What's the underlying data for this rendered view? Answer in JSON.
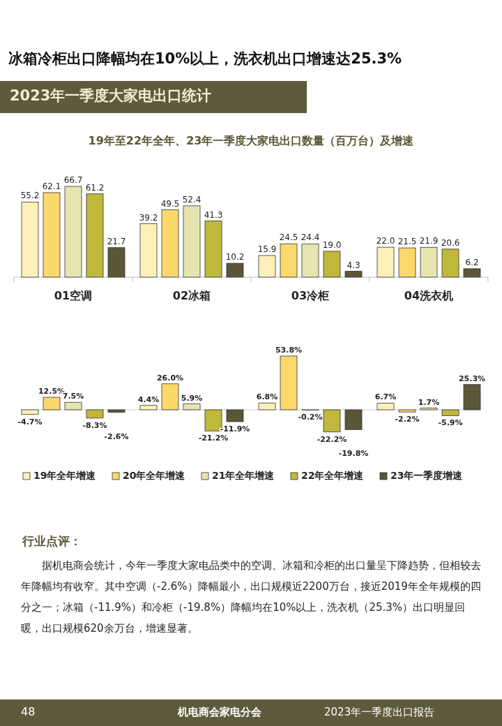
{
  "chart_data": [
    {
      "type": "bar",
      "title": "19年至22年全年、23年一季度大家电出口数量（百万台）及增速",
      "categories": [
        "01空调",
        "02冰箱",
        "03冷柜",
        "04洗衣机"
      ],
      "series": [
        {
          "color": "#fdf0b8",
          "values": [
            55.2,
            39.2,
            15.9,
            22.0
          ],
          "value_labels": [
            "55.2",
            "39.2",
            "15.9",
            "22.0"
          ]
        },
        {
          "color": "#fbd86a",
          "values": [
            62.1,
            49.5,
            24.5,
            21.5
          ],
          "value_labels": [
            "62.1",
            "49.5",
            "24.5",
            "21.5"
          ]
        },
        {
          "color": "#e6e5b0",
          "values": [
            66.7,
            52.4,
            24.4,
            21.9
          ],
          "value_labels": [
            "66.7",
            "52.4",
            "24.4",
            "21.9"
          ]
        },
        {
          "color": "#bfb83a",
          "values": [
            61.2,
            41.3,
            19.0,
            20.6
          ],
          "value_labels": [
            "61.2",
            "41.3",
            "19.0",
            "20.6"
          ]
        },
        {
          "color": "#5b5638",
          "values": [
            21.7,
            10.2,
            4.3,
            6.2
          ],
          "value_labels": [
            "21.7",
            "10.2",
            "4.3",
            "6.2"
          ]
        }
      ],
      "annotations": [
        "冰箱冷柜出口降幅均在10%以上，洗衣机出口增速达25.3%",
        "2023年一季度大家电出口统计"
      ]
    },
    {
      "type": "bar",
      "categories": [
        null,
        null,
        null,
        null
      ],
      "legend": "bottom",
      "series": [
        {
          "name": "19年全年增速",
          "color": "#fdf0b8",
          "values": [
            -4.7,
            4.4,
            6.8,
            6.7
          ],
          "value_labels": [
            "-4.7%",
            "4.4%",
            "6.8%",
            "6.7%"
          ]
        },
        {
          "name": "20年全年增速",
          "color": "#fbd86a",
          "values": [
            12.5,
            26.0,
            53.8,
            -2.2
          ],
          "value_labels": [
            "12.5%",
            "26.0%",
            "53.8%",
            "-2.2%"
          ]
        },
        {
          "name": "21年全年增速",
          "color": "#e6e5b0",
          "values": [
            7.5,
            5.9,
            -0.2,
            1.7
          ],
          "value_labels": [
            "7.5%",
            "5.9%",
            "-0.2%",
            "1.7%"
          ]
        },
        {
          "name": "22年全年增速",
          "color": "#bfb83a",
          "values": [
            -8.3,
            -21.2,
            -22.2,
            -5.9
          ],
          "value_labels": [
            "-8.3%",
            "-21.2%",
            "-22.2%",
            "-5.9%"
          ]
        },
        {
          "name": "23年一季度增速",
          "color": "#5b5638",
          "values": [
            -2.6,
            -11.9,
            -19.8,
            25.3
          ],
          "value_labels": [
            "-2.6%",
            "-11.9%",
            "-19.8%",
            "25.3%"
          ]
        }
      ],
      "annotations": [
        "行业点评：",
        "据机电商会统计，今年一季度大家电品类中的空调、冰箱和冷柜的出口量呈下降趋势，但相较去年降幅均有收窄。其中空调（-2.6%）降幅最小，出口规模近2200万台，接近2019年全年规模的四分之一；冰箱（-11.9%）和冷柜（-19.8%）降幅均在10%以上，洗衣机（25.3%）出口明显回暖，出口规模620余万台，增速显著。",
        "48",
        "机电商会家电分会",
        "2023年一季度出口报告"
      ]
    }
  ]
}
